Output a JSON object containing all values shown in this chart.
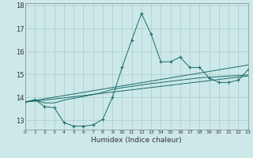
{
  "title": "",
  "xlabel": "Humidex (Indice chaleur)",
  "background_color": "#cce8e8",
  "grid_color": "#aacccc",
  "line_color": "#1a6b6b",
  "xlim": [
    0,
    23
  ],
  "ylim": [
    12.6,
    18.1
  ],
  "yticks": [
    13,
    14,
    15,
    16,
    17,
    18
  ],
  "xtick_labels": [
    "0",
    "1",
    "2",
    "3",
    "4",
    "5",
    "6",
    "7",
    "8",
    "9",
    "10",
    "11",
    "12",
    "13",
    "14",
    "15",
    "16",
    "17",
    "18",
    "19",
    "20",
    "21",
    "22",
    "23"
  ],
  "main_y": [
    13.8,
    13.9,
    13.6,
    13.55,
    12.9,
    12.75,
    12.75,
    12.8,
    13.05,
    14.0,
    15.3,
    16.5,
    17.65,
    16.75,
    15.55,
    15.55,
    15.75,
    15.3,
    15.3,
    14.85,
    14.65,
    14.65,
    14.75,
    15.2
  ],
  "line2_y": [
    13.8,
    13.88,
    13.76,
    13.76,
    13.88,
    13.96,
    14.04,
    14.12,
    14.22,
    14.35,
    14.42,
    14.48,
    14.54,
    14.6,
    14.65,
    14.7,
    14.75,
    14.8,
    14.85,
    14.88,
    14.9,
    14.93,
    14.95,
    14.98
  ],
  "line3_y": [
    13.8,
    13.84,
    13.88,
    13.93,
    13.98,
    14.03,
    14.08,
    14.13,
    14.18,
    14.23,
    14.28,
    14.33,
    14.38,
    14.43,
    14.48,
    14.53,
    14.58,
    14.63,
    14.68,
    14.73,
    14.78,
    14.83,
    14.88,
    14.93
  ],
  "line4_y": [
    13.8,
    13.87,
    13.94,
    14.01,
    14.08,
    14.15,
    14.22,
    14.29,
    14.36,
    14.43,
    14.5,
    14.57,
    14.64,
    14.71,
    14.78,
    14.85,
    14.92,
    14.99,
    15.06,
    15.13,
    15.2,
    15.27,
    15.34,
    15.41
  ]
}
